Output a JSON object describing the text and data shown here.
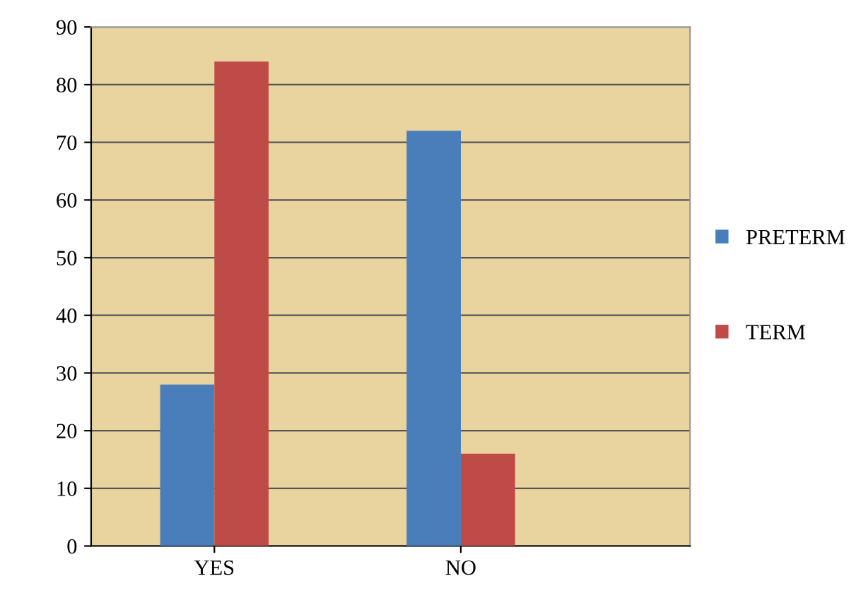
{
  "chart_data": {
    "type": "bar",
    "categories": [
      "YES",
      "NO"
    ],
    "series": [
      {
        "name": "PRETERM",
        "color": "#4a7ebb",
        "values": [
          28,
          72
        ]
      },
      {
        "name": "TERM",
        "color": "#be4b48",
        "values": [
          84,
          16
        ]
      }
    ],
    "ylim": [
      0,
      90
    ],
    "yticks": [
      0,
      10,
      20,
      30,
      40,
      50,
      60,
      70,
      80,
      90
    ],
    "grid": "y",
    "legend": "right"
  }
}
